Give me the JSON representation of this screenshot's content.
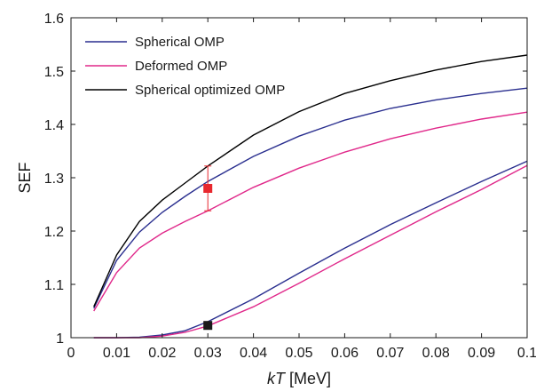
{
  "chart_data": {
    "type": "line",
    "xlabel_italic": "kT",
    "xlabel_unit": " [MeV]",
    "ylabel": "SEF",
    "xlim": [
      0,
      0.1
    ],
    "ylim": [
      1,
      1.6
    ],
    "x_ticks": [
      "0",
      "0.01",
      "0.02",
      "0.03",
      "0.04",
      "0.05",
      "0.06",
      "0.07",
      "0.08",
      "0.09",
      "0.1"
    ],
    "y_ticks": [
      "1",
      "1.1",
      "1.2",
      "1.3",
      "1.4",
      "1.5",
      "1.6"
    ],
    "grid": false,
    "legend_position": "top-left",
    "series": [
      {
        "name": "Spherical OMP",
        "color": "#2a2f8f",
        "segments": [
          {
            "x": [
              0.005,
              0.01,
              0.015,
              0.02,
              0.025,
              0.03,
              0.04,
              0.05,
              0.06,
              0.07,
              0.08,
              0.09,
              0.1
            ],
            "y": [
              1.055,
              1.145,
              1.198,
              1.235,
              1.265,
              1.293,
              1.34,
              1.378,
              1.408,
              1.43,
              1.446,
              1.458,
              1.468
            ]
          },
          {
            "x": [
              0.005,
              0.01,
              0.015,
              0.02,
              0.025,
              0.03,
              0.04,
              0.05,
              0.06,
              0.07,
              0.08,
              0.09,
              0.1
            ],
            "y": [
              1.0,
              1.0,
              1.001,
              1.005,
              1.013,
              1.03,
              1.073,
              1.121,
              1.168,
              1.212,
              1.253,
              1.293,
              1.331
            ]
          }
        ]
      },
      {
        "name": "Deformed OMP",
        "color": "#e0288a",
        "segments": [
          {
            "x": [
              0.005,
              0.01,
              0.015,
              0.02,
              0.025,
              0.03,
              0.04,
              0.05,
              0.06,
              0.07,
              0.08,
              0.09,
              0.1
            ],
            "y": [
              1.05,
              1.122,
              1.168,
              1.196,
              1.218,
              1.238,
              1.282,
              1.318,
              1.348,
              1.373,
              1.393,
              1.41,
              1.423
            ]
          },
          {
            "x": [
              0.005,
              0.01,
              0.015,
              0.02,
              0.025,
              0.03,
              0.04,
              0.05,
              0.06,
              0.07,
              0.08,
              0.09,
              0.1
            ],
            "y": [
              1.0,
              1.0,
              1.0,
              1.003,
              1.01,
              1.022,
              1.058,
              1.102,
              1.148,
              1.192,
              1.236,
              1.278,
              1.323
            ]
          }
        ]
      },
      {
        "name": "Spherical optimized OMP",
        "color": "#000000",
        "segments": [
          {
            "x": [
              0.005,
              0.01,
              0.015,
              0.02,
              0.025,
              0.03,
              0.04,
              0.05,
              0.06,
              0.07,
              0.08,
              0.09,
              0.1
            ],
            "y": [
              1.058,
              1.155,
              1.218,
              1.258,
              1.29,
              1.322,
              1.38,
              1.424,
              1.458,
              1.482,
              1.502,
              1.518,
              1.53
            ]
          }
        ]
      }
    ],
    "markers": [
      {
        "x": 0.03,
        "y": 1.28,
        "color": "#e8282e",
        "error_low": 1.238,
        "error_high": 1.322
      },
      {
        "x": 0.03,
        "y": 1.023,
        "color": "#1a1a1a"
      }
    ]
  }
}
